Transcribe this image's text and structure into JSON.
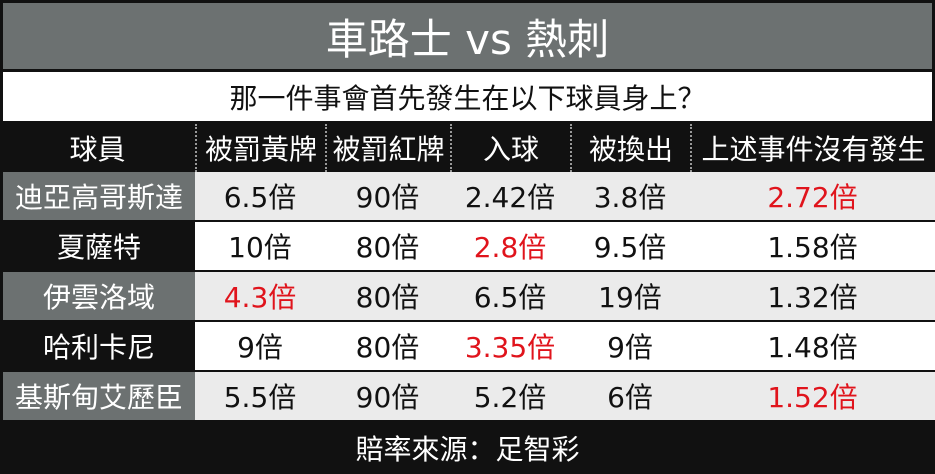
{
  "title": "車路士 vs 熱刺",
  "subtitle": "那一件事會首先發生在以下球員身上？",
  "table": {
    "header": [
      "球員",
      "被罰黃牌",
      "被罰紅牌",
      "入球",
      "被換出",
      "上述事件沒有發生"
    ],
    "highlight_color": "#e0141c",
    "rows": [
      {
        "player": "迪亞高哥斯達",
        "odds": [
          "6.5倍",
          "90倍",
          "2.42倍",
          "3.8倍",
          "2.72倍"
        ],
        "highlight": 4
      },
      {
        "player": "夏薩特",
        "odds": [
          "10倍",
          "80倍",
          "2.8倍",
          "9.5倍",
          "1.58倍"
        ],
        "highlight": 2
      },
      {
        "player": "伊雲洛域",
        "odds": [
          "4.3倍",
          "80倍",
          "6.5倍",
          "19倍",
          "1.32倍"
        ],
        "highlight": 0
      },
      {
        "player": "哈利卡尼",
        "odds": [
          "9倍",
          "80倍",
          "3.35倍",
          "9倍",
          "1.48倍"
        ],
        "highlight": 2
      },
      {
        "player": "基斯甸艾歷臣",
        "odds": [
          "5.5倍",
          "90倍",
          "5.2倍",
          "6倍",
          "1.52倍"
        ],
        "highlight": 4
      }
    ]
  },
  "footer": "賠率來源：足智彩"
}
